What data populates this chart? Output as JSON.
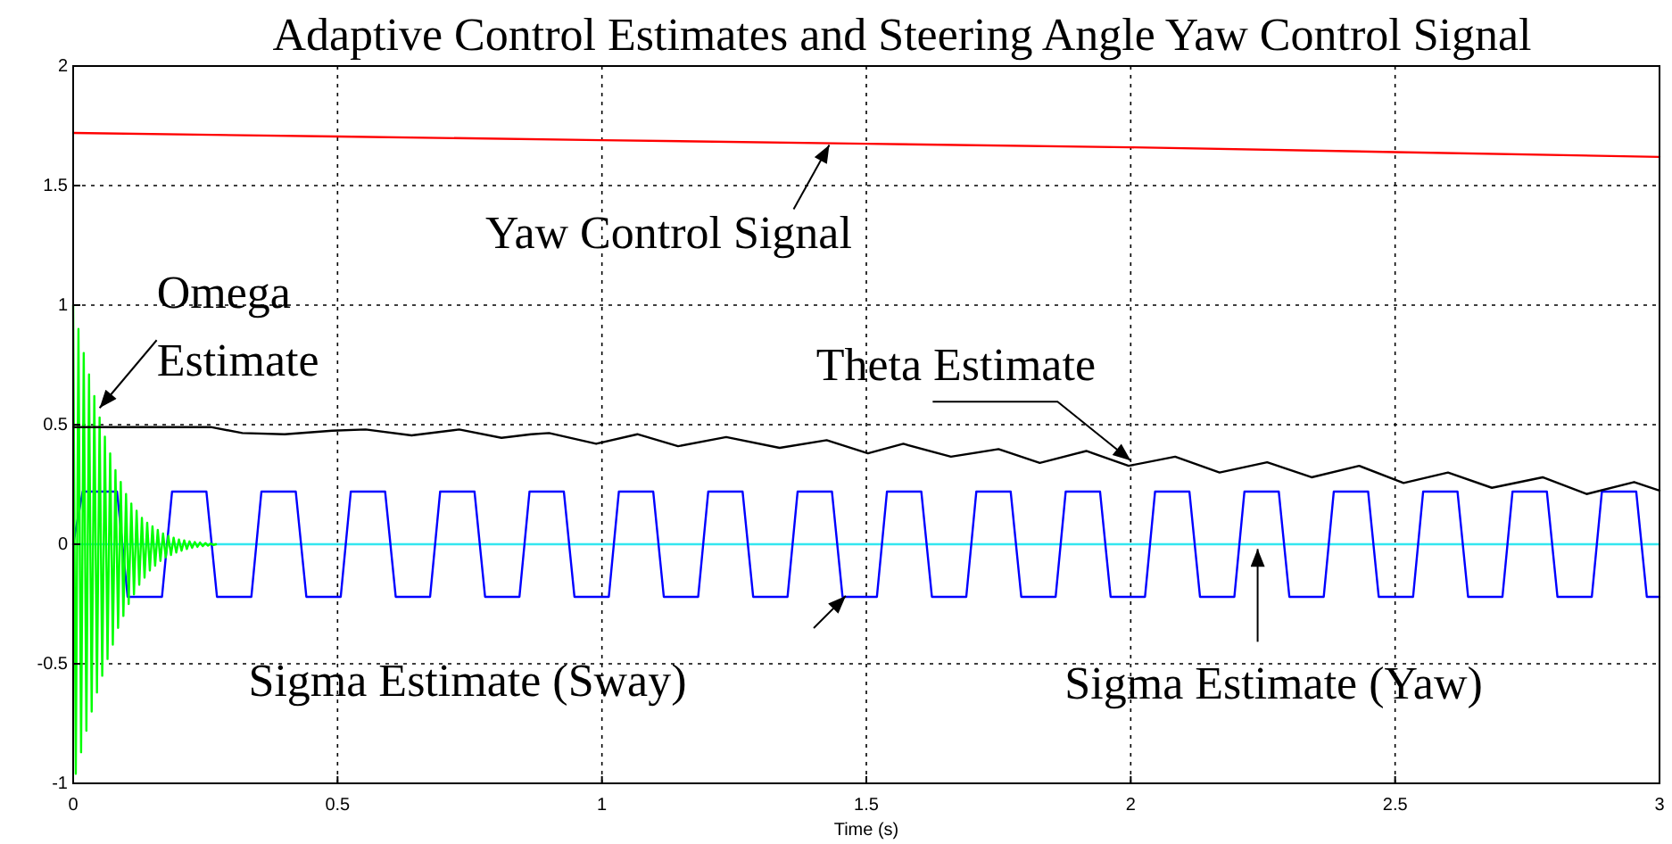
{
  "chart_data": {
    "type": "line",
    "title": "Adaptive Control Estimates and Steering Angle Yaw Control Signal",
    "xlabel": "Time (s)",
    "xlim": [
      0,
      3
    ],
    "xticks": [
      0,
      0.5,
      1,
      1.5,
      2,
      2.5,
      3
    ],
    "ylim": [
      -1,
      2
    ],
    "yticks": [
      -1,
      -0.5,
      0,
      0.5,
      1,
      1.5,
      2
    ],
    "grid": true,
    "annotations": [
      {
        "text": "Yaw Control Signal",
        "x": 1.43,
        "y": 1.67
      },
      {
        "text": "Theta Estimate",
        "x": 2.0,
        "y": 0.35
      },
      {
        "text": "Omega Estimate",
        "x": 0.05,
        "y": 0.57
      },
      "Sigma Estimate (Sway)",
      {
        "text": "Sigma Estimate (Yaw)",
        "x": 2.24,
        "y": -0.02
      }
    ],
    "legend": false,
    "marker": "none",
    "line_style": "solid",
    "series": [
      {
        "color": "#ff0000",
        "x": [
          0,
          0.5,
          1,
          1.5,
          2,
          2.5,
          3
        ],
        "values": [
          1.72,
          1.705,
          1.69,
          1.675,
          1.66,
          1.64,
          1.62
        ]
      },
      {
        "color": "#000000",
        "x": [
          0,
          0.26,
          0.32,
          0.4,
          0.49,
          0.553,
          0.64,
          0.73,
          0.81,
          0.866,
          0.9,
          0.989,
          1.067,
          1.144,
          1.235,
          1.336,
          1.425,
          1.503,
          1.57,
          1.66,
          1.75,
          1.828,
          1.916,
          1.996,
          2.084,
          2.168,
          2.258,
          2.342,
          2.432,
          2.516,
          2.6,
          2.683,
          2.779,
          2.862,
          2.952,
          3
        ],
        "values": [
          0.49,
          0.49,
          0.465,
          0.46,
          0.475,
          0.48,
          0.455,
          0.48,
          0.445,
          0.46,
          0.465,
          0.42,
          0.46,
          0.41,
          0.448,
          0.403,
          0.435,
          0.38,
          0.42,
          0.366,
          0.398,
          0.34,
          0.39,
          0.328,
          0.366,
          0.3,
          0.343,
          0.28,
          0.328,
          0.256,
          0.3,
          0.236,
          0.28,
          0.21,
          0.26,
          0.224
        ]
      },
      {
        "color": "#00ff00",
        "x": [
          0,
          0.005,
          0.01,
          0.015,
          0.02,
          0.025,
          0.03,
          0.035,
          0.04,
          0.045,
          0.05,
          0.055,
          0.06,
          0.065,
          0.07,
          0.075,
          0.08,
          0.085,
          0.09,
          0.095,
          0.1,
          0.105,
          0.11,
          0.115,
          0.12,
          0.125,
          0.13,
          0.135,
          0.14,
          0.145,
          0.15,
          0.155,
          0.16,
          0.165,
          0.17,
          0.175,
          0.18,
          0.185,
          0.19,
          0.195,
          0.2,
          0.205,
          0.21,
          0.215,
          0.22,
          0.225,
          0.23,
          0.235,
          0.24,
          0.245,
          0.25,
          0.255,
          0.26,
          0.265,
          0.27
        ],
        "values": [
          1,
          -0.96,
          0.9,
          -0.87,
          0.8,
          -0.78,
          0.71,
          -0.7,
          0.62,
          -0.62,
          0.53,
          -0.55,
          0.45,
          -0.48,
          0.38,
          -0.42,
          0.31,
          -0.35,
          0.26,
          -0.3,
          0.21,
          -0.25,
          0.17,
          -0.21,
          0.14,
          -0.17,
          0.11,
          -0.14,
          0.09,
          -0.11,
          0.075,
          -0.09,
          0.06,
          -0.07,
          0.045,
          -0.055,
          0.035,
          -0.045,
          0.027,
          -0.035,
          0.02,
          -0.027,
          0.016,
          -0.02,
          0.012,
          -0.015,
          0.009,
          -0.011,
          0.007,
          -0.008,
          0.005,
          -0.006,
          0.003,
          -0.003,
          0
        ]
      },
      {
        "color": "#0000ff",
        "x": [
          0,
          0.018,
          0.083,
          0.103,
          0.168,
          0.187,
          0.252,
          0.272,
          0.337,
          0.356,
          0.421,
          0.441,
          0.506,
          0.525,
          0.59,
          0.61,
          0.675,
          0.694,
          0.759,
          0.779,
          0.844,
          0.863,
          0.928,
          0.948,
          1.013,
          1.032,
          1.097,
          1.117,
          1.182,
          1.201,
          1.266,
          1.286,
          1.351,
          1.37,
          1.435,
          1.455,
          1.52,
          1.539,
          1.604,
          1.624,
          1.689,
          1.708,
          1.773,
          1.793,
          1.858,
          1.877,
          1.942,
          1.962,
          2.027,
          2.046,
          2.111,
          2.131,
          2.196,
          2.215,
          2.28,
          2.3,
          2.365,
          2.384,
          2.449,
          2.469,
          2.534,
          2.553,
          2.618,
          2.638,
          2.703,
          2.722,
          2.787,
          2.807,
          2.872,
          2.891,
          2.956,
          2.976,
          3
        ],
        "values": [
          0,
          0.22,
          0.22,
          -0.22,
          -0.22,
          0.22,
          0.22,
          -0.22,
          -0.22,
          0.22,
          0.22,
          -0.22,
          -0.22,
          0.22,
          0.22,
          -0.22,
          -0.22,
          0.22,
          0.22,
          -0.22,
          -0.22,
          0.22,
          0.22,
          -0.22,
          -0.22,
          0.22,
          0.22,
          -0.22,
          -0.22,
          0.22,
          0.22,
          -0.22,
          -0.22,
          0.22,
          0.22,
          -0.22,
          -0.22,
          0.22,
          0.22,
          -0.22,
          -0.22,
          0.22,
          0.22,
          -0.22,
          -0.22,
          0.22,
          0.22,
          -0.22,
          -0.22,
          0.22,
          0.22,
          -0.22,
          -0.22,
          0.22,
          0.22,
          -0.22,
          -0.22,
          0.22,
          0.22,
          -0.22,
          -0.22,
          0.22,
          0.22,
          -0.22,
          -0.22,
          0.22,
          0.22,
          -0.22,
          -0.22,
          0.22,
          0.22,
          -0.22,
          -0.22
        ]
      },
      {
        "color": "#33e6f0",
        "x": [
          0,
          3
        ],
        "values": [
          0,
          0
        ]
      }
    ]
  }
}
